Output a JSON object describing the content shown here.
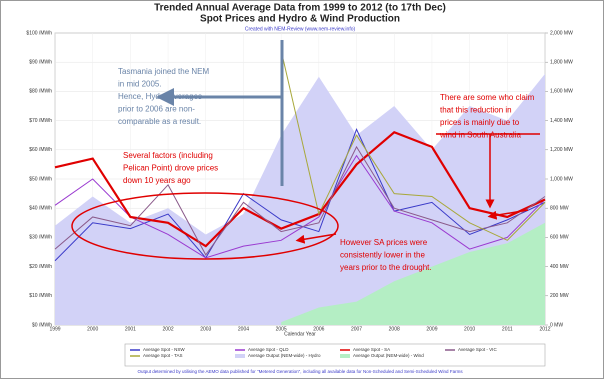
{
  "chart_data": {
    "type": "line",
    "title": "Trended Annual Average Data from 1999 to 2012 (to 17th Dec)",
    "subtitle": "Spot Prices and Hydro & Wind Production",
    "credit": "Created with NEM-Review (www.nem-review.info)",
    "x_label": "Calendar Year",
    "footer": "Output determined by utilising the AEMO data published for \"Metered Generation\", including all available data for Non-Scheduled and Semi-Scheduled Wind Farms",
    "categories": [
      "1999",
      "2000",
      "2001",
      "2002",
      "2003",
      "2004",
      "2005",
      "2006",
      "2007",
      "2008",
      "2009",
      "2010",
      "2011",
      "2012"
    ],
    "ylim": [
      0,
      100
    ],
    "yticks": [
      {
        "value": 0,
        "label": "$0 /MWh"
      },
      {
        "value": 10,
        "label": "$10 /MWh"
      },
      {
        "value": 20,
        "label": "$20 /MWh"
      },
      {
        "value": 30,
        "label": "$30 /MWh"
      },
      {
        "value": 40,
        "label": "$40 /MWh"
      },
      {
        "value": 50,
        "label": "$50 /MWh"
      },
      {
        "value": 60,
        "label": "$60 /MWh"
      },
      {
        "value": 70,
        "label": "$70 /MWh"
      },
      {
        "value": 80,
        "label": "$80 /MWh"
      },
      {
        "value": 90,
        "label": "$90 /MWh"
      },
      {
        "value": 100,
        "label": "$100 /MWh"
      }
    ],
    "y2lim": [
      0,
      2000
    ],
    "y2ticks": [
      {
        "value": 0,
        "label": "0 MW"
      },
      {
        "value": 200,
        "label": "200 MW"
      },
      {
        "value": 400,
        "label": "400 MW"
      },
      {
        "value": 600,
        "label": "600 MW"
      },
      {
        "value": 800,
        "label": "800 MW"
      },
      {
        "value": 1000,
        "label": "1,000 MW"
      },
      {
        "value": 1200,
        "label": "1,200 MW"
      },
      {
        "value": 1400,
        "label": "1,400 MW"
      },
      {
        "value": 1600,
        "label": "1,600 MW"
      },
      {
        "value": 1800,
        "label": "1,800 MW"
      },
      {
        "value": 2000,
        "label": "2,000 MW"
      }
    ],
    "grid": true,
    "series": [
      {
        "name": "Average Output (NEM-wide) - Hydro",
        "type": "area",
        "axis": "y2",
        "color": "#d2d2f7",
        "values": [
          680,
          880,
          700,
          800,
          620,
          760,
          1300,
          1700,
          1300,
          1500,
          1200,
          1500,
          1400,
          1720
        ]
      },
      {
        "name": "Average Output (NEM-wide) - Wind",
        "type": "area",
        "axis": "y2",
        "color": "#b4eec4",
        "values": [
          null,
          null,
          null,
          null,
          null,
          null,
          20,
          120,
          160,
          300,
          400,
          500,
          560,
          700
        ]
      },
      {
        "name": "Average Spot - NSW",
        "color": "#3a3ac8",
        "width": 1,
        "values": [
          22,
          35,
          33,
          38,
          23,
          45,
          36,
          32,
          67,
          39,
          42,
          31,
          36,
          42
        ]
      },
      {
        "name": "Average Spot - QLD",
        "color": "#9a3ad0",
        "width": 1,
        "values": [
          41,
          50,
          37,
          31,
          23,
          27,
          29,
          37,
          58,
          39,
          35,
          26,
          30,
          43
        ]
      },
      {
        "name": "Average Spot - SA",
        "color": "#e00000",
        "width": 2.2,
        "values": [
          54,
          57,
          37,
          35,
          27,
          40,
          33,
          38,
          55,
          66,
          61,
          40,
          37,
          43
        ]
      },
      {
        "name": "Average Spot - VIC",
        "color": "#8a5a8a",
        "width": 1,
        "values": [
          26,
          37,
          34,
          48,
          24,
          42,
          32,
          35,
          61,
          40,
          36,
          32,
          35,
          44
        ]
      },
      {
        "name": "Average Spot - TAS",
        "color": "#a8a83a",
        "width": 1,
        "values": [
          null,
          null,
          null,
          null,
          null,
          null,
          94,
          38,
          65,
          45,
          44,
          35,
          29,
          42
        ]
      }
    ],
    "annotations": [
      {
        "color": "#6a84a8",
        "lines": [
          "Tasmania joined the NEM",
          "in mid 2005.",
          "Hence, Hydro averages",
          "prior to 2006 are non-",
          "comparable as a result."
        ]
      },
      {
        "color": "#e00000",
        "lines": [
          "There are some who claim",
          "that this reduction in",
          "prices is mainly due to",
          "wind in South Australia"
        ]
      },
      {
        "color": "#e00000",
        "lines": [
          "Several factors (including",
          "Pelican Point) drove prices",
          "down 10 years ago"
        ]
      },
      {
        "color": "#e00000",
        "lines": [
          "However SA prices were",
          "consistently lower in the",
          "years prior to the drought."
        ]
      }
    ]
  }
}
